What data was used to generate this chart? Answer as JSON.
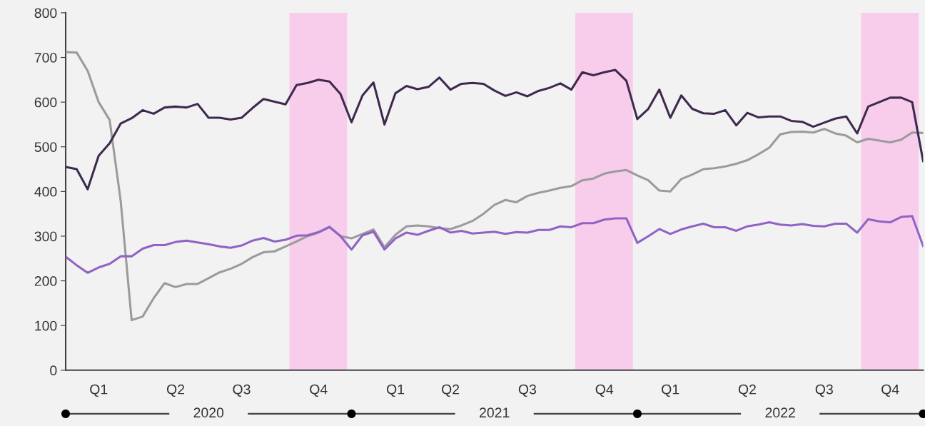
{
  "chart_data": {
    "type": "line",
    "ylim": [
      0,
      800
    ],
    "yticks": [
      0,
      100,
      200,
      300,
      400,
      500,
      600,
      700,
      800
    ],
    "categories": [
      null,
      null,
      null,
      "Q1",
      null,
      null,
      null,
      null,
      null,
      null,
      "Q2",
      null,
      null,
      null,
      null,
      null,
      "Q3",
      null,
      null,
      null,
      null,
      null,
      null,
      "Q4",
      null,
      null,
      null,
      null,
      null,
      null,
      "Q1",
      null,
      null,
      null,
      null,
      "Q2",
      null,
      null,
      null,
      null,
      null,
      null,
      "Q3",
      null,
      null,
      null,
      null,
      null,
      null,
      "Q4",
      null,
      null,
      null,
      null,
      null,
      "Q1",
      null,
      null,
      null,
      null,
      null,
      null,
      "Q2",
      null,
      null,
      null,
      null,
      null,
      null,
      "Q3",
      null,
      null,
      null,
      null,
      null,
      "Q4",
      null,
      null,
      null
    ],
    "annotations": [
      "2020",
      "2021",
      "2022"
    ],
    "grid": false,
    "series": [
      {
        "color": "#9b9b9b",
        "values": [
          712,
          711,
          670,
          600,
          560,
          380,
          112,
          120,
          161,
          195,
          186,
          193,
          193,
          206,
          219,
          227,
          238,
          253,
          264,
          266,
          277,
          288,
          300,
          308,
          320,
          300,
          295,
          305,
          315,
          275,
          303,
          322,
          324,
          322,
          318,
          316,
          324,
          334,
          350,
          370,
          381,
          376,
          390,
          397,
          402,
          408,
          412,
          425,
          429,
          440,
          445,
          448,
          436,
          425,
          402,
          400,
          428,
          438,
          450,
          452,
          456,
          462,
          470,
          483,
          498,
          528,
          533,
          534,
          532,
          540,
          530,
          525,
          510,
          518,
          514,
          510,
          516,
          532,
          531
        ]
      },
      {
        "color": "#9063c4",
        "values": [
          254,
          235,
          218,
          230,
          238,
          255,
          255,
          272,
          280,
          280,
          287,
          290,
          286,
          282,
          277,
          274,
          279,
          290,
          296,
          288,
          292,
          301,
          302,
          309,
          321,
          300,
          270,
          302,
          310,
          270,
          295,
          308,
          303,
          312,
          320,
          308,
          312,
          306,
          308,
          310,
          305,
          309,
          308,
          314,
          314,
          322,
          320,
          329,
          329,
          337,
          340,
          340,
          285,
          300,
          316,
          305,
          315,
          322,
          328,
          320,
          320,
          312,
          322,
          326,
          331,
          326,
          324,
          327,
          323,
          322,
          328,
          328,
          308,
          338,
          333,
          331,
          343,
          345,
          278
        ]
      },
      {
        "color": "#3f2a4f",
        "values": [
          455,
          450,
          405,
          480,
          508,
          552,
          564,
          582,
          574,
          588,
          590,
          588,
          596,
          565,
          565,
          561,
          565,
          587,
          607,
          601,
          595,
          638,
          643,
          650,
          646,
          618,
          555,
          615,
          644,
          550,
          620,
          636,
          629,
          634,
          655,
          628,
          641,
          643,
          641,
          626,
          614,
          622,
          613,
          625,
          632,
          642,
          628,
          667,
          660,
          667,
          672,
          648,
          562,
          585,
          628,
          565,
          615,
          585,
          575,
          574,
          582,
          548,
          576,
          566,
          568,
          568,
          558,
          556,
          545,
          554,
          563,
          568,
          530,
          590,
          600,
          610,
          610,
          600,
          468
        ]
      }
    ]
  }
}
